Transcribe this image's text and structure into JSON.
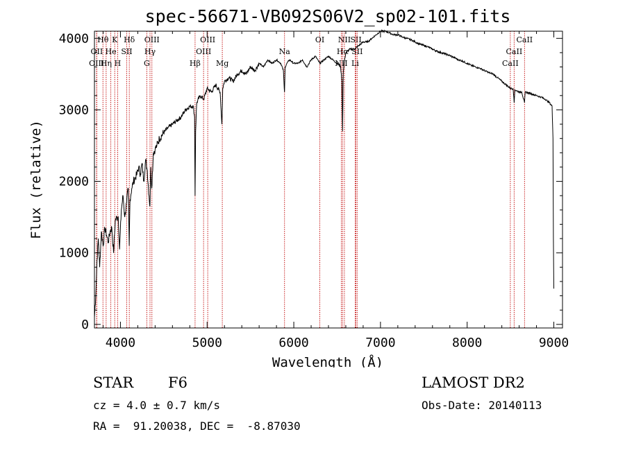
{
  "chart_data": {
    "type": "line",
    "title": "spec-56671-VB092S06V2_sp02-101.fits",
    "xlabel": "Wavelength (Å)",
    "ylabel": "Flux (relative)",
    "xlim": [
      3700,
      9100
    ],
    "ylim": [
      -50,
      4100
    ],
    "xticks": [
      4000,
      5000,
      6000,
      7000,
      8000,
      9000
    ],
    "yticks": [
      0,
      1000,
      2000,
      3000,
      4000
    ],
    "series": [
      {
        "name": "flux",
        "x": [
          3700,
          3715,
          3730,
          3745,
          3760,
          3780,
          3800,
          3820,
          3840,
          3860,
          3880,
          3900,
          3920,
          3940,
          3960,
          3975,
          3990,
          4010,
          4030,
          4050,
          4070,
          4090,
          4101,
          4110,
          4130,
          4150,
          4170,
          4190,
          4210,
          4230,
          4250,
          4270,
          4290,
          4310,
          4330,
          4340,
          4350,
          4360,
          4380,
          4400,
          4420,
          4450,
          4480,
          4510,
          4550,
          4600,
          4650,
          4700,
          4750,
          4800,
          4840,
          4855,
          4861,
          4867,
          4880,
          4920,
          4960,
          5000,
          5050,
          5100,
          5150,
          5170,
          5175,
          5180,
          5200,
          5250,
          5300,
          5350,
          5400,
          5450,
          5500,
          5550,
          5600,
          5650,
          5700,
          5750,
          5800,
          5850,
          5880,
          5890,
          5893,
          5896,
          5900,
          5920,
          5950,
          6000,
          6050,
          6100,
          6150,
          6200,
          6250,
          6300,
          6350,
          6400,
          6450,
          6500,
          6540,
          6555,
          6563,
          6570,
          6580,
          6600,
          6650,
          6700,
          6750,
          6800,
          6850,
          6900,
          6950,
          7000,
          7050,
          7100,
          7150,
          7200,
          7250,
          7300,
          7350,
          7400,
          7450,
          7500,
          7550,
          7600,
          7650,
          7700,
          7750,
          7800,
          7850,
          7900,
          7950,
          8000,
          8050,
          8100,
          8150,
          8200,
          8250,
          8300,
          8350,
          8400,
          8450,
          8500,
          8530,
          8542,
          8550,
          8600,
          8630,
          8662,
          8670,
          8700,
          8750,
          8800,
          8850,
          8900,
          8950,
          8980,
          8990,
          8995,
          9000
        ],
        "values": [
          100,
          400,
          900,
          1200,
          800,
          1300,
          1100,
          1350,
          1250,
          1150,
          1300,
          1350,
          1000,
          1450,
          1500,
          1500,
          1050,
          1600,
          1800,
          1500,
          1700,
          1900,
          1100,
          1750,
          1900,
          2000,
          2050,
          2100,
          2200,
          2100,
          2250,
          2000,
          2300,
          2150,
          1800,
          1650,
          2200,
          1900,
          2400,
          2450,
          2500,
          2600,
          2650,
          2700,
          2750,
          2800,
          2850,
          2900,
          3000,
          3050,
          3050,
          2900,
          1800,
          2700,
          3100,
          3200,
          3150,
          3300,
          3250,
          3350,
          3250,
          2800,
          3000,
          3300,
          3400,
          3450,
          3400,
          3500,
          3550,
          3500,
          3600,
          3550,
          3650,
          3600,
          3700,
          3650,
          3700,
          3650,
          3550,
          3300,
          3250,
          3400,
          3600,
          3650,
          3700,
          3650,
          3650,
          3700,
          3600,
          3700,
          3750,
          3650,
          3700,
          3750,
          3700,
          3650,
          3600,
          3400,
          2700,
          3500,
          3650,
          3800,
          3850,
          3850,
          3900,
          3950,
          3950,
          4000,
          4050,
          4100,
          4100,
          4080,
          4050,
          4050,
          4020,
          4000,
          3980,
          3950,
          3920,
          3900,
          3880,
          3850,
          3820,
          3800,
          3780,
          3760,
          3730,
          3700,
          3680,
          3650,
          3620,
          3600,
          3580,
          3550,
          3520,
          3500,
          3450,
          3400,
          3350,
          3300,
          3300,
          3100,
          3280,
          3250,
          3250,
          3100,
          3250,
          3240,
          3220,
          3200,
          3180,
          3150,
          3100,
          3050,
          2600,
          1200,
          500
        ]
      }
    ],
    "line_markers": [
      {
        "label": "Hθ",
        "x": 3798,
        "row": 1
      },
      {
        "label": "K",
        "x": 3934,
        "row": 1
      },
      {
        "label": "Hδ",
        "x": 4102,
        "row": 1
      },
      {
        "label": "OIII",
        "x": 4363,
        "row": 1
      },
      {
        "label": "OIII",
        "x": 5007,
        "row": 1
      },
      {
        "label": "OI",
        "x": 6300,
        "row": 1
      },
      {
        "label": "NII",
        "x": 6584,
        "row": 1
      },
      {
        "label": "SII",
        "x": 6717,
        "row": 1
      },
      {
        "label": "CaII",
        "x": 8662,
        "row": 1
      },
      {
        "label": "OII",
        "x": 3727,
        "row": 2
      },
      {
        "label": "He",
        "x": 3889,
        "row": 2
      },
      {
        "label": "SII",
        "x": 4072,
        "row": 2
      },
      {
        "label": "Hγ",
        "x": 4341,
        "row": 2
      },
      {
        "label": "OIII",
        "x": 4959,
        "row": 2
      },
      {
        "label": "Na",
        "x": 5893,
        "row": 2
      },
      {
        "label": "Hα",
        "x": 6563,
        "row": 2
      },
      {
        "label": "SII",
        "x": 6731,
        "row": 2
      },
      {
        "label": "CaII",
        "x": 8542,
        "row": 2
      },
      {
        "label": "OIII",
        "x": 3725,
        "row": 3
      },
      {
        "label": "Hη",
        "x": 3835,
        "row": 3
      },
      {
        "label": "H",
        "x": 3968,
        "row": 3
      },
      {
        "label": "G",
        "x": 4304,
        "row": 3
      },
      {
        "label": "Hβ",
        "x": 4861,
        "row": 3
      },
      {
        "label": "Mg",
        "x": 5175,
        "row": 3
      },
      {
        "label": "NII",
        "x": 6548,
        "row": 3
      },
      {
        "label": "Li",
        "x": 6708,
        "row": 3
      },
      {
        "label": "CaII",
        "x": 8498,
        "row": 3
      }
    ]
  },
  "info": {
    "object_class": "STAR",
    "subclass": "F6",
    "survey": "LAMOST DR2",
    "redshift": "cz = 4.0 ± 0.7 km/s",
    "obs_date": "Obs-Date: 20140113",
    "coords": "RA =  91.20038, DEC =  -8.87030"
  },
  "colors": {
    "line": "#000000",
    "marker": "#c00000",
    "axis": "#000000",
    "background": "#ffffff"
  }
}
